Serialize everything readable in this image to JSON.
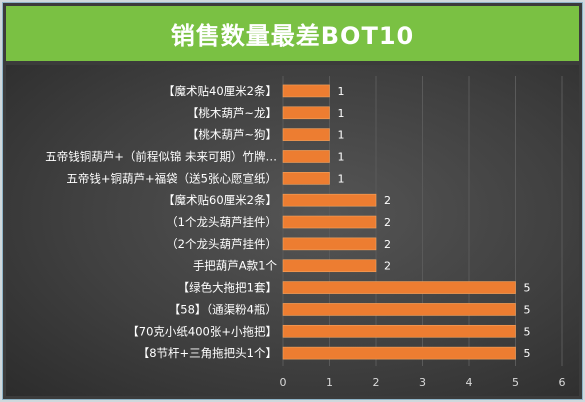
{
  "title": "销售数量最差BOT10",
  "colors": {
    "title_bg": "#7ac143",
    "plot_bg": "#404040",
    "bar": "#ed7d31",
    "bar_stroke": "#f4a460",
    "text": "#ffffff",
    "grid": "#5a5a5a"
  },
  "chart_data": {
    "type": "bar",
    "orientation": "horizontal",
    "title": "销售数量最差BOT10",
    "categories": [
      "【魔术贴40厘米2条】",
      "【桃木葫芦~龙】",
      "【桃木葫芦~狗】",
      "五帝钱铜葫芦+（前程似锦 未来可期）竹牌…",
      "五帝钱+铜葫芦+福袋（送5张心愿宣纸）",
      "【魔术贴60厘米2条】",
      "（1个龙头葫芦挂件）",
      "（2个龙头葫芦挂件）",
      "手把葫芦A款1个",
      "【绿色大拖把1套】",
      "【58】（通渠粉4瓶）",
      "【70克小纸400张+小拖把】",
      "【8节杆+三角拖把头1个】"
    ],
    "values": [
      1,
      1,
      1,
      1,
      1,
      2,
      2,
      2,
      2,
      5,
      5,
      5,
      5
    ],
    "xlim": [
      0,
      6
    ],
    "xticks": [
      "0",
      "1",
      "2",
      "3",
      "4",
      "5",
      "6"
    ],
    "data_labels": [
      "1",
      "1",
      "1",
      "1",
      "1",
      "2",
      "2",
      "2",
      "2",
      "5",
      "5",
      "5",
      "5"
    ],
    "grid": true,
    "legend": "none"
  }
}
